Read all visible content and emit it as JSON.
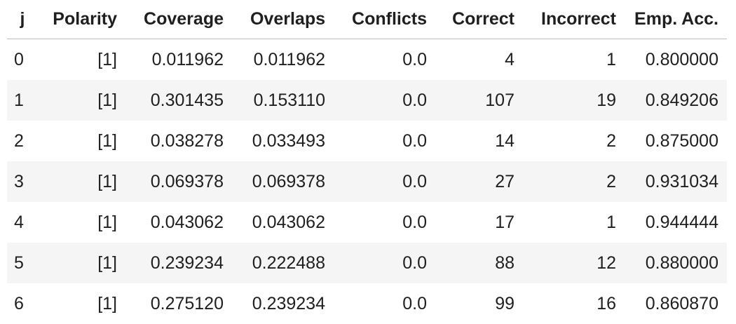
{
  "table": {
    "columns": [
      "j",
      "Polarity",
      "Coverage",
      "Overlaps",
      "Conflicts",
      "Correct",
      "Incorrect",
      "Emp. Acc."
    ],
    "rows": [
      [
        "0",
        "[1]",
        "0.011962",
        "0.011962",
        "0.0",
        "4",
        "1",
        "0.800000"
      ],
      [
        "1",
        "[1]",
        "0.301435",
        "0.153110",
        "0.0",
        "107",
        "19",
        "0.849206"
      ],
      [
        "2",
        "[1]",
        "0.038278",
        "0.033493",
        "0.0",
        "14",
        "2",
        "0.875000"
      ],
      [
        "3",
        "[1]",
        "0.069378",
        "0.069378",
        "0.0",
        "27",
        "2",
        "0.931034"
      ],
      [
        "4",
        "[1]",
        "0.043062",
        "0.043062",
        "0.0",
        "17",
        "1",
        "0.944444"
      ],
      [
        "5",
        "[1]",
        "0.239234",
        "0.222488",
        "0.0",
        "88",
        "12",
        "0.880000"
      ],
      [
        "6",
        "[1]",
        "0.275120",
        "0.239234",
        "0.0",
        "99",
        "16",
        "0.860870"
      ]
    ]
  }
}
